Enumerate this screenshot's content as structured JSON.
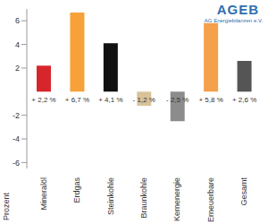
{
  "chart_data": {
    "type": "bar",
    "annotations": [
      "AGEB",
      "AG Energiebilanzen e.V."
    ],
    "y_label": "Prozent",
    "categories": [
      "Mineralöl",
      "Erdgas",
      "Steinkohle",
      "Braunkohle",
      "Kernenergie",
      "Erneuerbare",
      "Gesamt"
    ],
    "values": [
      2.2,
      6.7,
      4.1,
      -1.2,
      -2.5,
      5.8,
      2.6
    ],
    "value_labels": [
      "+ 2,2 %",
      "+ 6,7 %",
      "+ 4,1 %",
      "- 1,2 %",
      "- 2,5 %",
      "+ 5,8 %",
      "+ 2,6 %"
    ],
    "colors": [
      "#d7262b",
      "#f7a13b",
      "#111111",
      "#d9c29a",
      "#8c8c8c",
      "#f5a04a",
      "#555555"
    ],
    "ylim": [
      -6.5,
      7
    ],
    "yticks": [
      -6,
      -4,
      -2,
      2,
      4,
      6
    ],
    "grid": false,
    "data_labels": true
  }
}
